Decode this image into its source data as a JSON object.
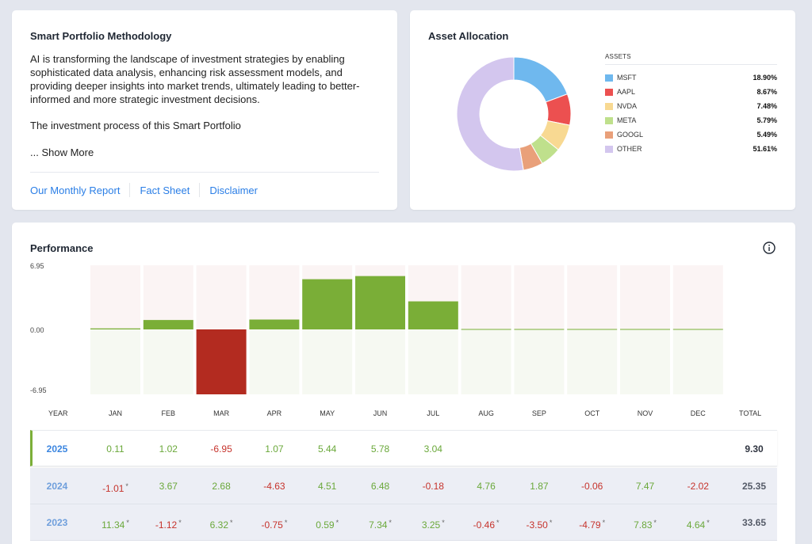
{
  "methodology": {
    "title": "Smart Portfolio Methodology",
    "paragraph1": "AI is transforming the landscape of investment strategies by enabling sophisticated data analysis, enhancing risk assessment models, and providing deeper insights into market trends, ultimately leading to better-informed and more strategic investment decisions.",
    "paragraph2": "The investment process of this Smart Portfolio",
    "show_more": "... Show More",
    "links": [
      "Our Monthly Report",
      "Fact Sheet",
      "Disclaimer"
    ]
  },
  "allocation": {
    "title": "Asset Allocation",
    "header": "ASSETS",
    "assets": [
      {
        "name": "MSFT",
        "pct_label": "18.90%",
        "value": 18.9,
        "color": "#6fb8ee"
      },
      {
        "name": "AAPL",
        "pct_label": "8.67%",
        "value": 8.67,
        "color": "#ec5050"
      },
      {
        "name": "NVDA",
        "pct_label": "7.48%",
        "value": 7.48,
        "color": "#f8d992"
      },
      {
        "name": "META",
        "pct_label": "5.79%",
        "value": 5.79,
        "color": "#bfe08c"
      },
      {
        "name": "GOOGL",
        "pct_label": "5.49%",
        "value": 5.49,
        "color": "#e9a07a"
      },
      {
        "name": "OTHER",
        "pct_label": "51.61%",
        "value": 51.61,
        "color": "#d3c6ee"
      }
    ]
  },
  "performance": {
    "title": "Performance",
    "ytick_top": "6.95",
    "ytick_mid": "0.00",
    "ytick_bottom": "-6.95",
    "col_year": "YEAR",
    "col_total": "TOTAL",
    "months": [
      "JAN",
      "FEB",
      "MAR",
      "APR",
      "MAY",
      "JUN",
      "JUL",
      "AUG",
      "SEP",
      "OCT",
      "NOV",
      "DEC"
    ],
    "rows": [
      {
        "year": "2025",
        "values": [
          "0.11",
          "1.02",
          "-6.95",
          "1.07",
          "5.44",
          "5.78",
          "3.04",
          "",
          "",
          "",
          "",
          ""
        ],
        "asterisk": [
          false,
          false,
          false,
          false,
          false,
          false,
          false,
          false,
          false,
          false,
          false,
          false
        ],
        "total": "9.30"
      },
      {
        "year": "2024",
        "values": [
          "-1.01",
          "3.67",
          "2.68",
          "-4.63",
          "4.51",
          "6.48",
          "-0.18",
          "4.76",
          "1.87",
          "-0.06",
          "7.47",
          "-2.02"
        ],
        "asterisk": [
          true,
          false,
          false,
          false,
          false,
          false,
          false,
          false,
          false,
          false,
          false,
          false
        ],
        "total": "25.35"
      },
      {
        "year": "2023",
        "values": [
          "11.34",
          "-1.12",
          "6.32",
          "-0.75",
          "0.59",
          "7.34",
          "3.25",
          "-0.46",
          "-3.50",
          "-4.79",
          "7.83",
          "4.64"
        ],
        "asterisk": [
          true,
          true,
          true,
          true,
          true,
          true,
          true,
          true,
          true,
          true,
          true,
          true
        ],
        "total": "33.65"
      }
    ]
  },
  "chart_data": {
    "type": "bar",
    "title": "Performance",
    "categories": [
      "JAN",
      "FEB",
      "MAR",
      "APR",
      "MAY",
      "JUN",
      "JUL",
      "AUG",
      "SEP",
      "OCT",
      "NOV",
      "DEC"
    ],
    "series": [
      {
        "name": "2025",
        "values": [
          0.11,
          1.02,
          -6.95,
          1.07,
          5.44,
          5.78,
          3.04,
          null,
          null,
          null,
          null,
          null
        ]
      }
    ],
    "ylim": [
      -6.95,
      6.95
    ],
    "yticks": [
      "6.95",
      "0.00",
      "-6.95"
    ],
    "colors": {
      "positive": "#7aae37",
      "negative": "#b32b20",
      "bg_positive": "#fbf4f4",
      "bg_negative": "#f6f9f2"
    }
  }
}
